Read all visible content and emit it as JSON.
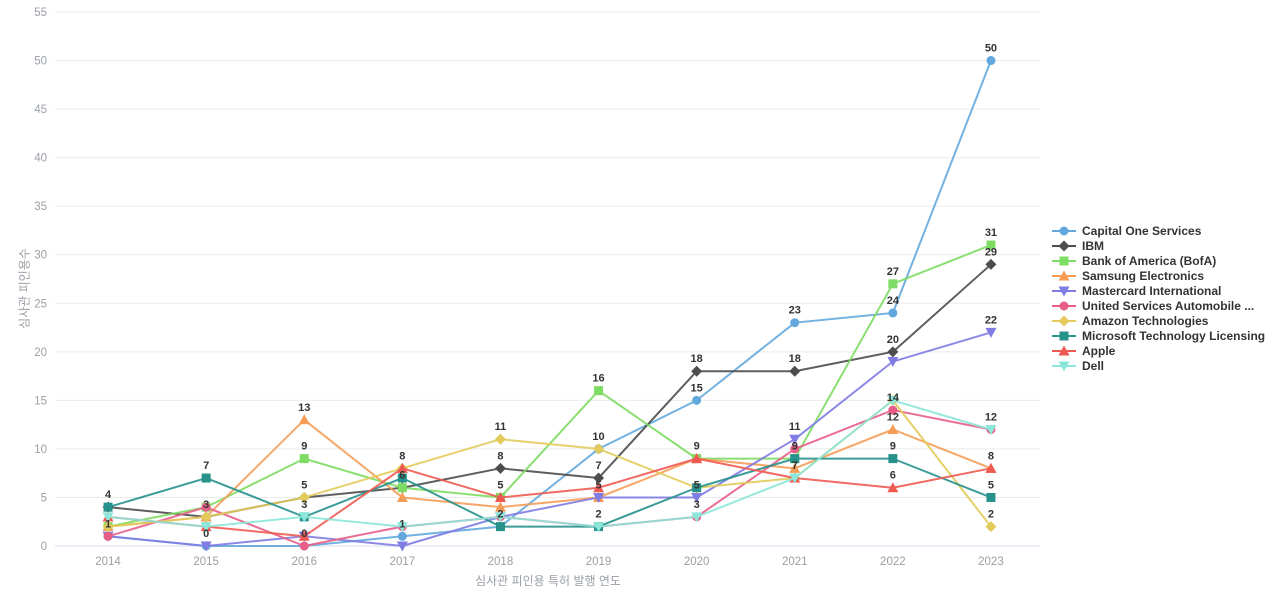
{
  "chart_data": {
    "type": "line",
    "title": "",
    "xlabel": "심사관 피인용 특허 발행 연도",
    "ylabel": "심사관 피인용수",
    "x": [
      2014,
      2015,
      2016,
      2017,
      2018,
      2019,
      2020,
      2021,
      2022,
      2023
    ],
    "ylim": [
      0,
      55
    ],
    "ytick_step": 5,
    "grid": true,
    "legend_position": "right",
    "label_color": "#333333",
    "axis_text_color": "#9aa0a6",
    "grid_color": "#ebebeb",
    "axis_line_color": "#d9e2ec",
    "series": [
      {
        "id": "capital-one-services",
        "name": "Capital One Services",
        "color": "#63a8dd",
        "marker": "circle",
        "values": [
          1,
          0,
          0,
          1,
          2,
          10,
          15,
          23,
          24,
          50
        ]
      },
      {
        "id": "ibm",
        "name": "IBM",
        "color": "#4d4d4d",
        "marker": "diamond",
        "values": [
          4,
          3,
          5,
          6,
          8,
          7,
          18,
          18,
          20,
          29
        ]
      },
      {
        "id": "bank-of-america",
        "name": "Bank of America (BofA)",
        "color": "#7edb63",
        "marker": "square",
        "values": [
          2,
          4,
          9,
          6,
          5,
          16,
          9,
          9,
          27,
          31
        ]
      },
      {
        "id": "samsung-electronics",
        "name": "Samsung Electronics",
        "color": "#f59d56",
        "marker": "triangle-up",
        "values": [
          2,
          3,
          13,
          5,
          4,
          5,
          9,
          8,
          12,
          8
        ]
      },
      {
        "id": "mastercard-international",
        "name": "Mastercard International",
        "color": "#7f7ce3",
        "marker": "triangle-down",
        "values": [
          1,
          0,
          1,
          0,
          3,
          5,
          5,
          11,
          19,
          22
        ]
      },
      {
        "id": "united-services-automobile",
        "name": "United Services Automobile ...",
        "color": "#e85d87",
        "marker": "circle",
        "values": [
          1,
          4,
          0,
          2,
          3,
          2,
          3,
          10,
          14,
          12
        ]
      },
      {
        "id": "amazon-technologies",
        "name": "Amazon Technologies",
        "color": "#e2cb5a",
        "marker": "diamond",
        "values": [
          2,
          3,
          5,
          8,
          11,
          10,
          6,
          7,
          15,
          2
        ]
      },
      {
        "id": "microsoft-technology-licensing",
        "name": "Microsoft Technology Licensing",
        "color": "#27918c",
        "marker": "square",
        "values": [
          4,
          7,
          3,
          7,
          2,
          2,
          6,
          9,
          9,
          5
        ]
      },
      {
        "id": "apple",
        "name": "Apple",
        "color": "#ee5a52",
        "marker": "triangle-up",
        "values": [
          3,
          2,
          1,
          8,
          5,
          6,
          9,
          7,
          6,
          8
        ]
      },
      {
        "id": "dell",
        "name": "Dell",
        "color": "#8ce6d9",
        "marker": "triangle-down",
        "values": [
          3,
          2,
          3,
          2,
          3,
          2,
          3,
          7,
          15,
          12
        ]
      }
    ]
  }
}
